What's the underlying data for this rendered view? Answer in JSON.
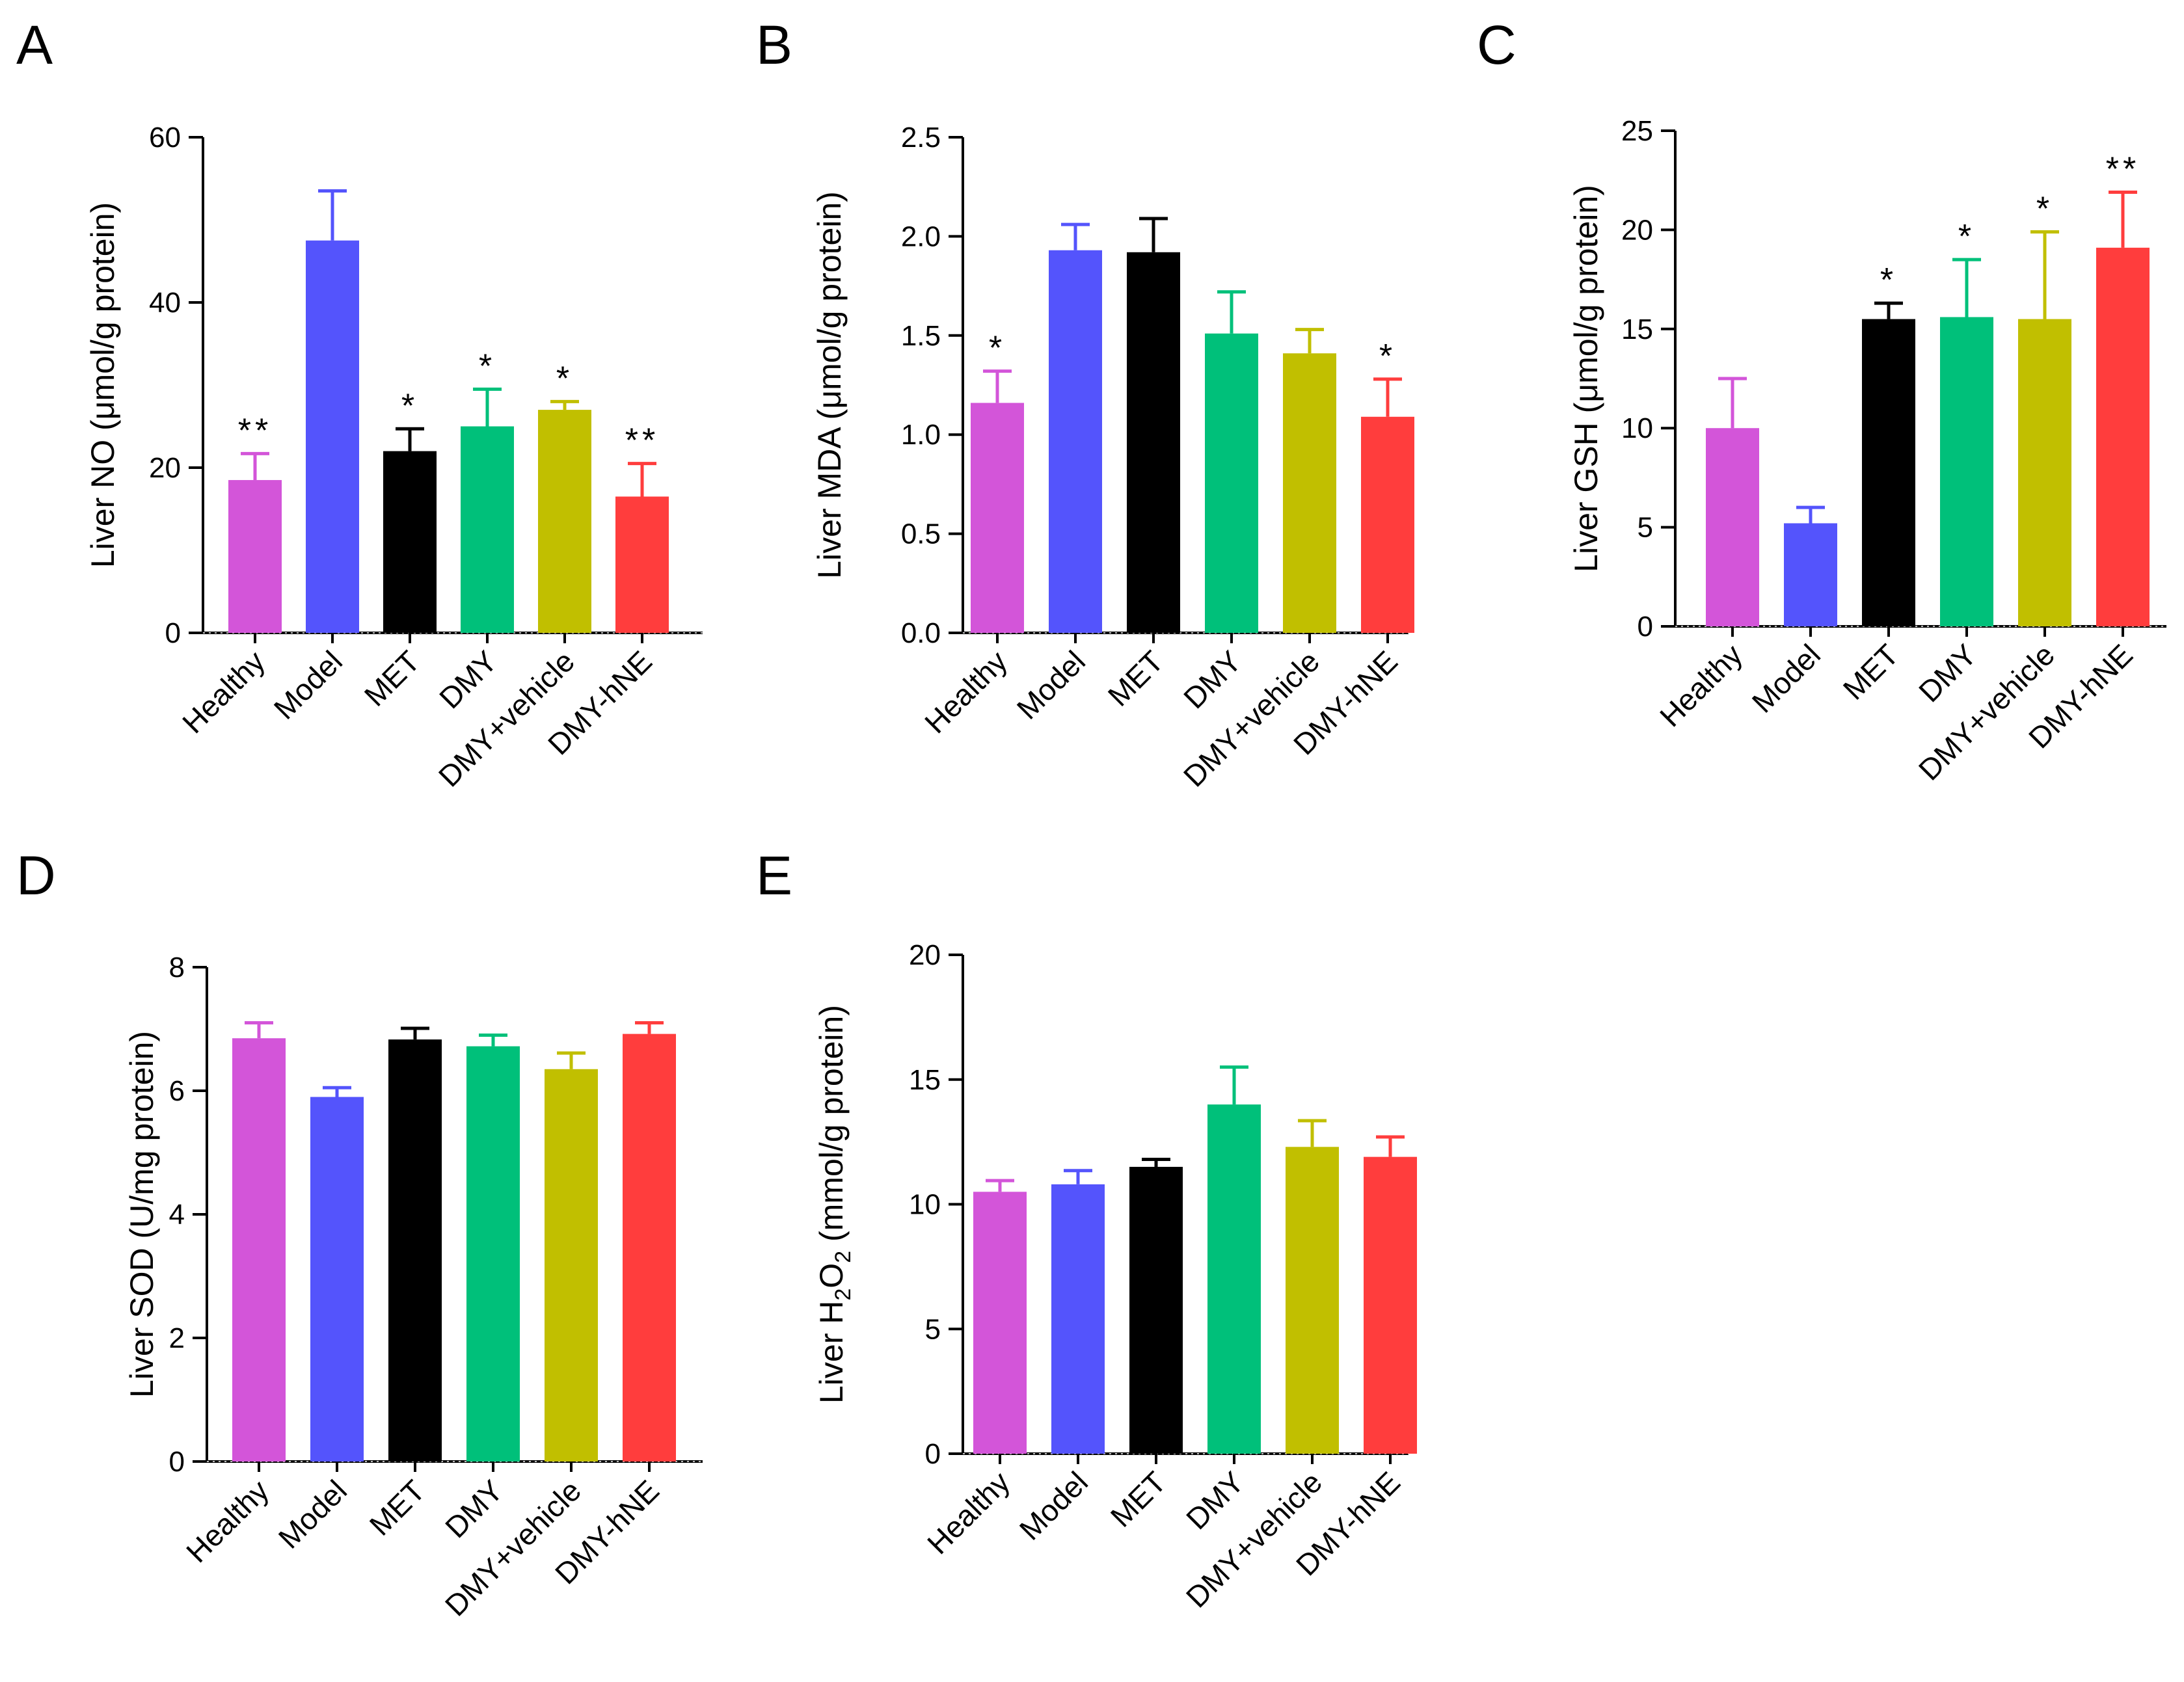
{
  "figure": {
    "categories": [
      "Healthy",
      "Model",
      "MET",
      "DMY",
      "DMY+vehicle",
      "DMY-hNE"
    ],
    "colors": [
      "#d355d9",
      "#5454fc",
      "#000000",
      "#00c07a",
      "#c1bf00",
      "#ff3d3d"
    ]
  },
  "chart_data": [
    {
      "panel": "A",
      "type": "bar",
      "ylabel": "Liver NO (μmol/g protein)",
      "ylim": [
        0,
        60
      ],
      "yticks": [
        0,
        20,
        40,
        60
      ],
      "categories": [
        "Healthy",
        "Model",
        "MET",
        "DMY",
        "DMY+vehicle",
        "DMY-hNE"
      ],
      "values": [
        18.5,
        47.5,
        22.0,
        25.0,
        27.0,
        16.5
      ],
      "errors": [
        3.2,
        6.0,
        2.7,
        4.5,
        1.0,
        4.0
      ],
      "significance": [
        "**",
        "",
        "*",
        "*",
        "*",
        "**"
      ]
    },
    {
      "panel": "B",
      "type": "bar",
      "ylabel": "Liver MDA (μmol/g protein)",
      "ylim": [
        0,
        2.5
      ],
      "yticks": [
        0.0,
        0.5,
        1.0,
        1.5,
        2.0,
        2.5
      ],
      "yticklabels": [
        "0.0",
        "0.5",
        "1.0",
        "1.5",
        "2.0",
        "2.5"
      ],
      "categories": [
        "Healthy",
        "Model",
        "MET",
        "DMY",
        "DMY+vehicle",
        "DMY-hNE"
      ],
      "values": [
        1.16,
        1.93,
        1.92,
        1.51,
        1.41,
        1.09
      ],
      "errors": [
        0.16,
        0.13,
        0.17,
        0.21,
        0.12,
        0.19
      ],
      "significance": [
        "*",
        "",
        "",
        "",
        "",
        "*"
      ]
    },
    {
      "panel": "C",
      "type": "bar",
      "ylabel": "Liver GSH (μmol/g protein)",
      "ylim": [
        0,
        25
      ],
      "yticks": [
        0,
        5,
        10,
        15,
        20,
        25
      ],
      "categories": [
        "Healthy",
        "Model",
        "MET",
        "DMY",
        "DMY+vehicle",
        "DMY-hNE"
      ],
      "values": [
        10.0,
        5.2,
        15.5,
        15.6,
        15.5,
        19.1
      ],
      "errors": [
        2.5,
        0.8,
        0.8,
        2.9,
        4.4,
        2.8
      ],
      "significance": [
        "",
        "",
        "*",
        "*",
        "*",
        "**"
      ]
    },
    {
      "panel": "D",
      "type": "bar",
      "ylabel": "Liver SOD (U/mg protein)",
      "ylim": [
        0,
        8
      ],
      "yticks": [
        0,
        2,
        4,
        6,
        8
      ],
      "categories": [
        "Healthy",
        "Model",
        "MET",
        "DMY",
        "DMY+vehicle",
        "DMY-hNE"
      ],
      "values": [
        6.85,
        5.9,
        6.83,
        6.72,
        6.35,
        6.92
      ],
      "errors": [
        0.25,
        0.15,
        0.18,
        0.18,
        0.26,
        0.18
      ],
      "significance": [
        "",
        "",
        "",
        "",
        "",
        ""
      ]
    },
    {
      "panel": "E",
      "type": "bar",
      "ylabel": "Liver H2O2 (mmol/g protein)",
      "ylabel_parts": [
        "Liver H",
        "2",
        "O",
        "2",
        " (mmol/g protein)"
      ],
      "ylim": [
        0,
        20
      ],
      "yticks": [
        0,
        5,
        10,
        15,
        20
      ],
      "categories": [
        "Healthy",
        "Model",
        "MET",
        "DMY",
        "DMY+vehicle",
        "DMY-hNE"
      ],
      "values": [
        10.5,
        10.8,
        11.5,
        14.0,
        12.3,
        11.9
      ],
      "errors": [
        0.45,
        0.55,
        0.3,
        1.5,
        1.05,
        0.8
      ],
      "significance": [
        "",
        "",
        "",
        "",
        "",
        ""
      ]
    }
  ]
}
